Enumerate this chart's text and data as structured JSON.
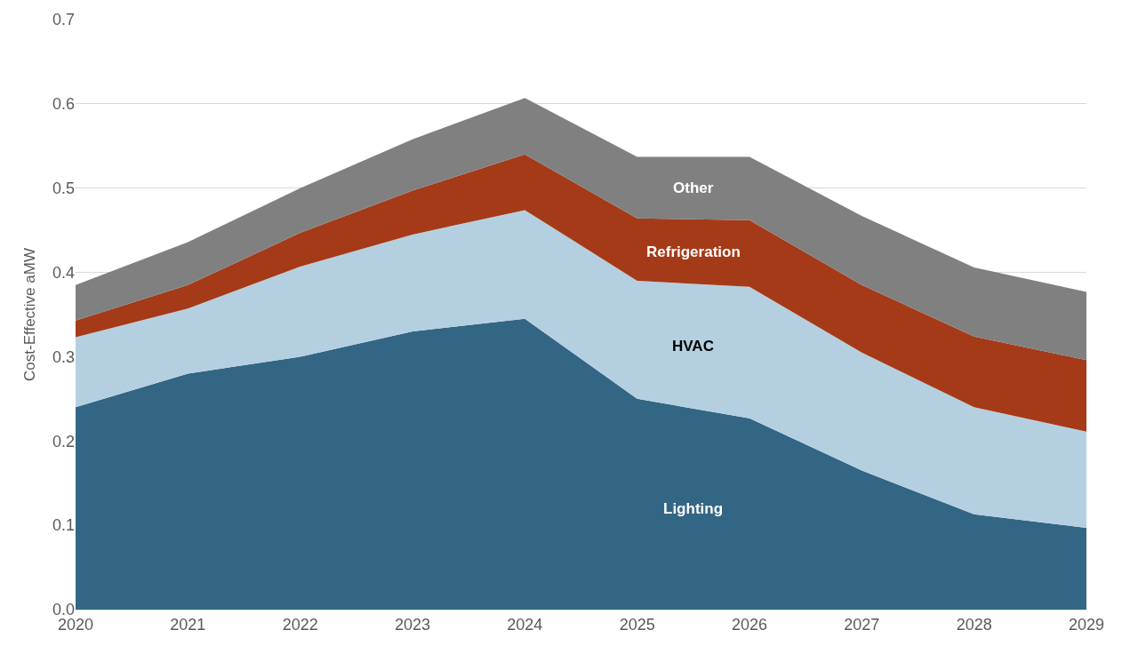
{
  "chart_data": {
    "type": "area",
    "stacked": true,
    "ylabel": "Cost-Effective aMW",
    "x": [
      2020,
      2021,
      2022,
      2023,
      2024,
      2025,
      2026,
      2027,
      2028,
      2029
    ],
    "series": [
      {
        "name": "Lighting",
        "color": "#336685",
        "values": [
          0.24,
          0.28,
          0.3,
          0.33,
          0.345,
          0.25,
          0.227,
          0.165,
          0.113,
          0.097
        ]
      },
      {
        "name": "HVAC",
        "color": "#b4d0e0",
        "values": [
          0.083,
          0.077,
          0.107,
          0.115,
          0.129,
          0.14,
          0.156,
          0.14,
          0.127,
          0.114
        ]
      },
      {
        "name": "Refrigeration",
        "color": "#a53a18",
        "values": [
          0.02,
          0.028,
          0.04,
          0.052,
          0.066,
          0.074,
          0.079,
          0.08,
          0.084,
          0.085
        ]
      },
      {
        "name": "Other",
        "color": "#808080",
        "values": [
          0.042,
          0.051,
          0.053,
          0.061,
          0.067,
          0.073,
          0.075,
          0.082,
          0.082,
          0.081
        ]
      }
    ],
    "xlim": [
      2020,
      2029
    ],
    "xticks": [
      2020,
      2021,
      2022,
      2023,
      2024,
      2025,
      2026,
      2027,
      2028,
      2029
    ],
    "ylim": [
      0,
      0.7
    ],
    "yticks": [
      {
        "value": 0,
        "label": "0.0"
      },
      0.1,
      0.2,
      0.3,
      0.4,
      0.5,
      0.6,
      0.7
    ],
    "grid": "y",
    "legend": false
  }
}
